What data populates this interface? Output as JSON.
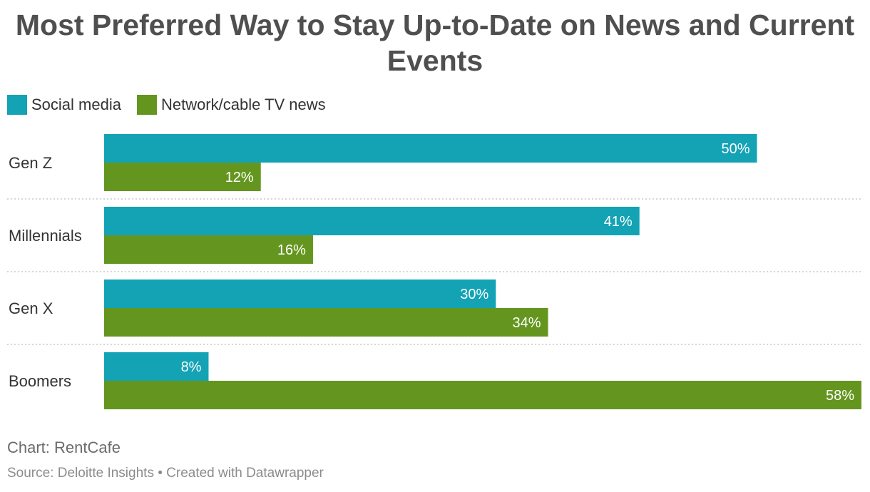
{
  "chart_data": {
    "type": "bar",
    "orientation": "horizontal",
    "title": "Most Preferred Way to Stay Up-to-Date on News and Current Events",
    "categories": [
      "Gen Z",
      "Millennials",
      "Gen X",
      "Boomers"
    ],
    "series": [
      {
        "name": "Social media",
        "color": "#13a3b5",
        "values": [
          50,
          41,
          30,
          8
        ],
        "labels": [
          "50%",
          "41%",
          "30%",
          "8%"
        ]
      },
      {
        "name": "Network/cable TV news",
        "color": "#64961f",
        "values": [
          12,
          16,
          34,
          58
        ],
        "labels": [
          "12%",
          "16%",
          "34%",
          "58%"
        ]
      }
    ],
    "xlim": [
      0,
      58
    ],
    "legend_position": "top-left",
    "gridlines": false
  },
  "footer": {
    "credit": "Chart: RentCafe",
    "source": "Source: Deloitte Insights • Created with Datawrapper"
  }
}
